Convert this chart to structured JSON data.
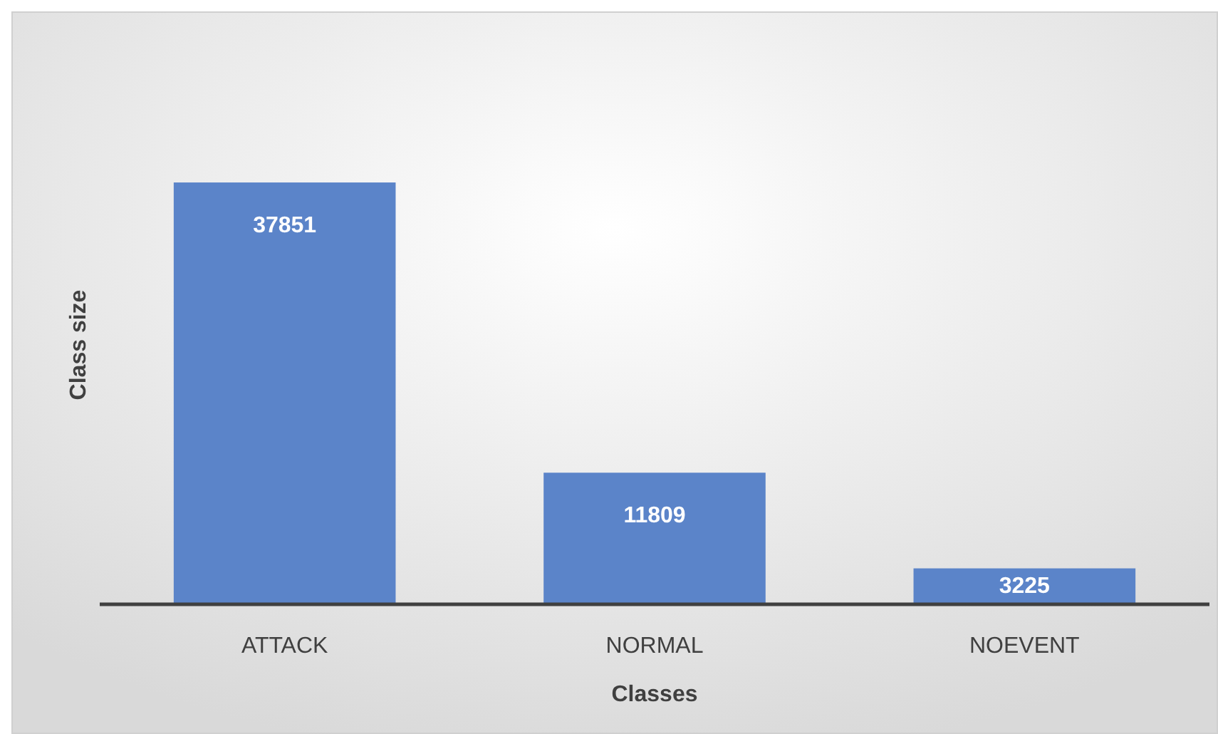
{
  "chart_data": {
    "type": "bar",
    "xlabel": "Classes",
    "ylabel": "Class size",
    "categories": [
      "ATTACK",
      "NORMAL",
      "NOEVENT"
    ],
    "values": [
      37851,
      11809,
      3225
    ],
    "color": "#5b84c9",
    "data_labels": true
  }
}
